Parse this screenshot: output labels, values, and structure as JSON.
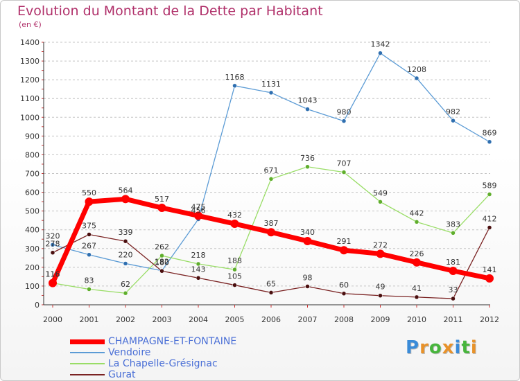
{
  "title": "Evolution du Montant de la Dette par Habitant",
  "subtitle": "(en €)",
  "brand": {
    "text": "Proxiti",
    "letter_colors": [
      "#3a8bd8",
      "#e8922a",
      "#47b53c",
      "#e8922a",
      "#3a8bd8",
      "#47b53c",
      "#e8922a"
    ]
  },
  "chart_data": {
    "type": "line",
    "title": "Evolution du Montant de la Dette par Habitant",
    "subtitle": "(en €)",
    "xlabel": "",
    "ylabel": "",
    "x": [
      "2000",
      "2001",
      "2002",
      "2003",
      "2004",
      "2005",
      "2006",
      "2007",
      "2008",
      "2009",
      "2010",
      "2011",
      "2012"
    ],
    "ylim": [
      0,
      1400
    ],
    "yticks": [
      0,
      100,
      200,
      300,
      400,
      500,
      600,
      700,
      800,
      900,
      1000,
      1100,
      1200,
      1300,
      1400
    ],
    "grid": "horizontal dashed",
    "legend_position": "bottom-left",
    "series": [
      {
        "name": "CHAMPAGNE-ET-FONTAINE",
        "color": "#ff0000",
        "values": [
          116,
          550,
          564,
          517,
          475,
          432,
          387,
          340,
          291,
          272,
          226,
          181,
          141
        ]
      },
      {
        "name": "Vendoire",
        "color": "#5b9bd5",
        "values": [
          320,
          267,
          220,
          182,
          456,
          1168,
          1131,
          1043,
          980,
          1342,
          1208,
          982,
          869
        ]
      },
      {
        "name": "La Chapelle-Grésignac",
        "color": "#99dd66",
        "values": [
          116,
          83,
          62,
          262,
          218,
          188,
          671,
          736,
          707,
          549,
          442,
          383,
          589
        ]
      },
      {
        "name": "Gurat",
        "color": "#7a2222",
        "values": [
          278,
          375,
          339,
          180,
          143,
          105,
          65,
          98,
          60,
          49,
          41,
          33,
          412
        ]
      }
    ]
  }
}
